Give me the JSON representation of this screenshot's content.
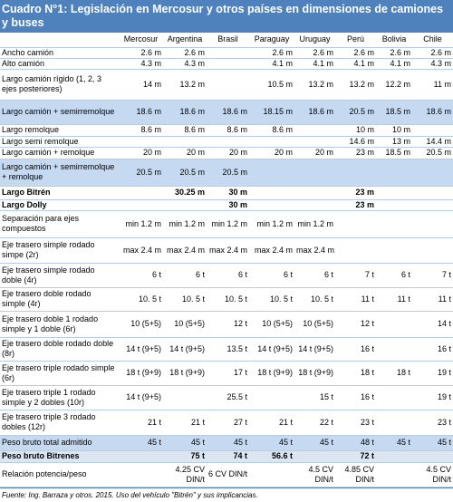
{
  "header": {
    "title": "Cuadro N°1: Legislación en Mercosur y otros países en dimensiones de camiones y buses"
  },
  "table": {
    "columns": [
      "Mercosur",
      "Argentina",
      "Brasil",
      "Paraguay",
      "Uruguay",
      "Perú",
      "Bolivia",
      "Chile"
    ],
    "rows": [
      {
        "label": "Ancho camión",
        "cells": [
          "2.6 m",
          "2.6 m",
          null,
          "2.6 m",
          "2.6 m",
          "2.6 m",
          "2.6 m",
          "2.6 m"
        ]
      },
      {
        "label": "Alto camión",
        "cells": [
          "4.3 m",
          "4.3 m",
          null,
          "4.1 m",
          "4.1 m",
          "4.1 m",
          "4.1 m",
          "4.3 m"
        ]
      },
      {
        "label": "Largo camión rígido (1, 2, 3 ejes posteriores)",
        "cells": [
          "14 m",
          "13.2 m",
          null,
          "10.5 m",
          "13.2 m",
          "13.2 m",
          "12.2 m",
          "11 m"
        ]
      },
      {
        "label": "Largo camión + semirremolque",
        "shaded": true,
        "cells": [
          "18.6 m",
          "18.6 m",
          "18.6 m",
          "18.15 m",
          "18.6 m",
          "20.5 m",
          "18.5 m",
          "18.6 m"
        ]
      },
      {
        "label": "Largo remolque",
        "cells": [
          "8.6 m",
          "8.6 m",
          "8.6 m",
          "8.6 m",
          null,
          "10 m",
          "10 m",
          null
        ]
      },
      {
        "label": "Largo semi remolque",
        "cells": [
          null,
          null,
          null,
          null,
          null,
          "14.6 m",
          "13 m",
          "14.4 m"
        ]
      },
      {
        "label": "Largo camión + remolque",
        "cells": [
          "20 m",
          "20 m",
          "20 m",
          "20 m",
          "20 m",
          "23 m",
          "18.5 m",
          "20.5 m"
        ]
      },
      {
        "label": "Largo camión + semirremolque + remolque",
        "shaded": true,
        "cells": [
          "20.5 m",
          "20.5 m",
          "20.5 m",
          null,
          null,
          null,
          null,
          null
        ]
      },
      {
        "label": "Largo Bitrén",
        "bold": true,
        "cells": [
          null,
          "30.25 m",
          "30 m",
          null,
          null,
          "23 m",
          null,
          null
        ]
      },
      {
        "label": "Largo Dolly",
        "bold": true,
        "cells": [
          null,
          null,
          "30 m",
          null,
          null,
          "23 m",
          null,
          null
        ]
      },
      {
        "label": "Separación para ejes compuestos",
        "cells": [
          "min 1.2 m",
          "min 1.2 m",
          "min 1.2 m",
          "min 1.2 m",
          "min 1.2 m",
          null,
          null,
          null
        ]
      },
      {
        "label": "Eje trasero simple rodado simpe (2r)",
        "cells": [
          "max 2.4 m",
          "max 2.4 m",
          "max 2.4 m",
          "max 2.4 m",
          "max 2.4 m",
          null,
          null,
          null
        ]
      },
      {
        "label": "Eje trasero simple rodado doble (4r)",
        "cells": [
          "6 t",
          "6 t",
          "6 t",
          "6 t",
          "6 t",
          "7 t",
          "6 t",
          "7 t"
        ]
      },
      {
        "label": "Eje trasero doble rodado simple (4r)",
        "cells": [
          "10. 5 t",
          "10. 5 t",
          "10. 5 t",
          "10. 5 t",
          "10. 5 t",
          "11 t",
          "11 t",
          "11 t"
        ]
      },
      {
        "label": "Eje trasero doble 1 rodado simple y 1 doble (6r)",
        "cells": [
          "10 (5+5)",
          "10 (5+5)",
          "12 t",
          "10 (5+5)",
          "10 (5+5)",
          "12 t",
          null,
          "14 t"
        ]
      },
      {
        "label": "Eje trasero doble rodado doble (8r)",
        "cells": [
          "14 t (9+5)",
          "14 t (9+5)",
          "13.5 t",
          "14 t (9+5)",
          "14 t (9+5)",
          "16 t",
          null,
          "16 t"
        ]
      },
      {
        "label": "Eje trasero triple rodado simple (6r)",
        "cells": [
          "18 t (9+9)",
          "18 t (9+9)",
          "17 t",
          "18 t (9+9)",
          "18 t (9+9)",
          "18 t",
          "18 t",
          "19 t"
        ]
      },
      {
        "label": "Eje trasero triple 1 rodado simple y 2 dobles (10r)",
        "cells": [
          "14 t (9+5)",
          null,
          "25.5 t",
          null,
          "15 t",
          "16 t",
          null,
          "19 t"
        ]
      },
      {
        "label": "Eje trasero triple 3 rodado dobles (12r)",
        "cells": [
          "21 t",
          "21 t",
          "27 t",
          "21 t",
          "22 t",
          "23 t",
          null,
          "23 t"
        ]
      },
      {
        "label": "Peso bruto total admitido",
        "shaded": true,
        "cells": [
          "45 t",
          "45 t",
          "45 t",
          "45 t",
          "45 t",
          "48 t",
          "45 t",
          "45 t"
        ]
      },
      {
        "label": "Peso bruto Bitrenes",
        "bold": true,
        "light": true,
        "cells": [
          null,
          "75 t",
          "74 t",
          "56.6 t",
          null,
          "72 t",
          null,
          null
        ]
      },
      {
        "label": "Relación potencia/peso",
        "cells": [
          null,
          "4.25 CV DIN/t",
          "6 CV DIN/t",
          null,
          "4.5 CV DIN/t",
          "4.85 CV DIN/t",
          null,
          "4.5 CV DIN/t"
        ]
      }
    ]
  },
  "footer": {
    "source": "Fuente: Ing. Barraza y otros. 2015. Uso del vehículo \"Bitrén\" y sus implicancias."
  }
}
